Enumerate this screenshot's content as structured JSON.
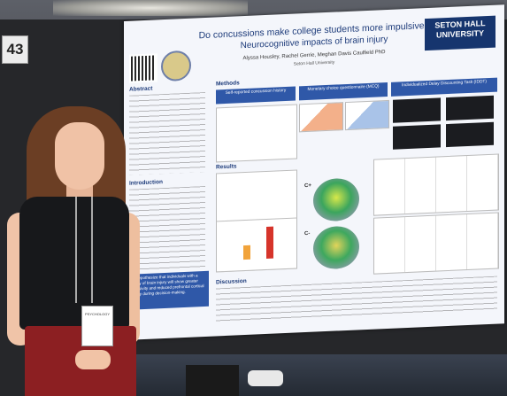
{
  "booth": {
    "number": "43"
  },
  "poster": {
    "title": "Do concussions make college students more impulsive?",
    "subtitle": "Neurocognitive impacts of brain injury",
    "authors": "Alyssa Housley, Rachel Gerrie, Meghan Davis Caulfield PhD",
    "affiliation": "Seton Hall University",
    "logo_text": "SETON HALL UNIVERSITY",
    "sections": {
      "abstract": "Abstract",
      "introduction": "Introduction",
      "methods": "Methods",
      "results": "Results",
      "discussion": "Discussion",
      "hypothesis_label": "We hypothesize that individuals with a history of brain injury will show greater impulsivity and reduced prefrontal cortical activity during decision-making."
    },
    "method_bars": [
      "Self-reported concussion history",
      "Monetary choice questionnaire (MCQ)",
      "Individualized Delay Discounting Task (IDDT)"
    ],
    "results_labels": [
      "C+",
      "C-"
    ]
  },
  "badge": {
    "text": "PSYCHOLOGY"
  }
}
